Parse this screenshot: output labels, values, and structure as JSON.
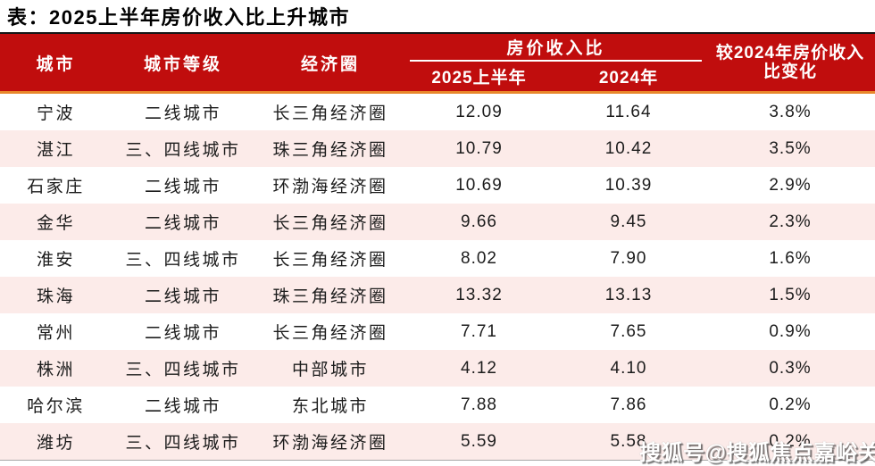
{
  "title": "表：2025上半年房价收入比上升城市",
  "header": {
    "city": "城市",
    "tier": "城市等级",
    "region": "经济圈",
    "ratio_group": "房价收入比",
    "ratio_2025": "2025上半年",
    "ratio_2024": "2024年",
    "change_line1": "较2024年房价收入",
    "change_line2": "比变化"
  },
  "rows": [
    {
      "city": "宁波",
      "tier": "二线城市",
      "region": "长三角经济圈",
      "ratio_2025": "12.09",
      "ratio_2024": "11.64",
      "change": "3.8%"
    },
    {
      "city": "湛江",
      "tier": "三、四线城市",
      "region": "珠三角经济圈",
      "ratio_2025": "10.79",
      "ratio_2024": "10.42",
      "change": "3.5%"
    },
    {
      "city": "石家庄",
      "tier": "二线城市",
      "region": "环渤海经济圈",
      "ratio_2025": "10.69",
      "ratio_2024": "10.39",
      "change": "2.9%"
    },
    {
      "city": "金华",
      "tier": "二线城市",
      "region": "长三角经济圈",
      "ratio_2025": "9.66",
      "ratio_2024": "9.45",
      "change": "2.3%"
    },
    {
      "city": "淮安",
      "tier": "三、四线城市",
      "region": "长三角经济圈",
      "ratio_2025": "8.02",
      "ratio_2024": "7.90",
      "change": "1.6%"
    },
    {
      "city": "珠海",
      "tier": "二线城市",
      "region": "珠三角经济圈",
      "ratio_2025": "13.32",
      "ratio_2024": "13.13",
      "change": "1.5%"
    },
    {
      "city": "常州",
      "tier": "二线城市",
      "region": "长三角经济圈",
      "ratio_2025": "7.71",
      "ratio_2024": "7.65",
      "change": "0.9%"
    },
    {
      "city": "株洲",
      "tier": "三、四线城市",
      "region": "中部城市",
      "ratio_2025": "4.12",
      "ratio_2024": "4.10",
      "change": "0.3%"
    },
    {
      "city": "哈尔滨",
      "tier": "二线城市",
      "region": "东北城市",
      "ratio_2025": "7.88",
      "ratio_2024": "7.86",
      "change": "0.2%"
    },
    {
      "city": "潍坊",
      "tier": "三、四线城市",
      "region": "环渤海经济圈",
      "ratio_2025": "5.59",
      "ratio_2024": "5.58",
      "change": "0.2%"
    }
  ],
  "watermark": "搜狐号@搜狐焦点嘉峪关站",
  "colors": {
    "header_red": "#c00d0d",
    "accent_orange": "#e8872b",
    "row_alt_pink": "#fcebe9",
    "header_text": "#ffffff",
    "body_text": "#1c1c1c"
  },
  "chart_data": {
    "type": "table",
    "title": "表：2025上半年房价收入比上升城市",
    "columns": [
      "城市",
      "城市等级",
      "经济圈",
      "房价收入比 2025上半年",
      "房价收入比 2024年",
      "较2024年房价收入比变化"
    ],
    "rows": [
      [
        "宁波",
        "二线城市",
        "长三角经济圈",
        12.09,
        11.64,
        "3.8%"
      ],
      [
        "湛江",
        "三、四线城市",
        "珠三角经济圈",
        10.79,
        10.42,
        "3.5%"
      ],
      [
        "石家庄",
        "二线城市",
        "环渤海经济圈",
        10.69,
        10.39,
        "2.9%"
      ],
      [
        "金华",
        "二线城市",
        "长三角经济圈",
        9.66,
        9.45,
        "2.3%"
      ],
      [
        "淮安",
        "三、四线城市",
        "长三角经济圈",
        8.02,
        7.9,
        "1.6%"
      ],
      [
        "珠海",
        "二线城市",
        "珠三角经济圈",
        13.32,
        13.13,
        "1.5%"
      ],
      [
        "常州",
        "二线城市",
        "长三角经济圈",
        7.71,
        7.65,
        "0.9%"
      ],
      [
        "株洲",
        "三、四线城市",
        "中部城市",
        4.12,
        4.1,
        "0.3%"
      ],
      [
        "哈尔滨",
        "二线城市",
        "东北城市",
        7.88,
        7.86,
        "0.2%"
      ],
      [
        "潍坊",
        "三、四线城市",
        "环渤海经济圈",
        5.59,
        5.58,
        "0.2%"
      ]
    ]
  }
}
